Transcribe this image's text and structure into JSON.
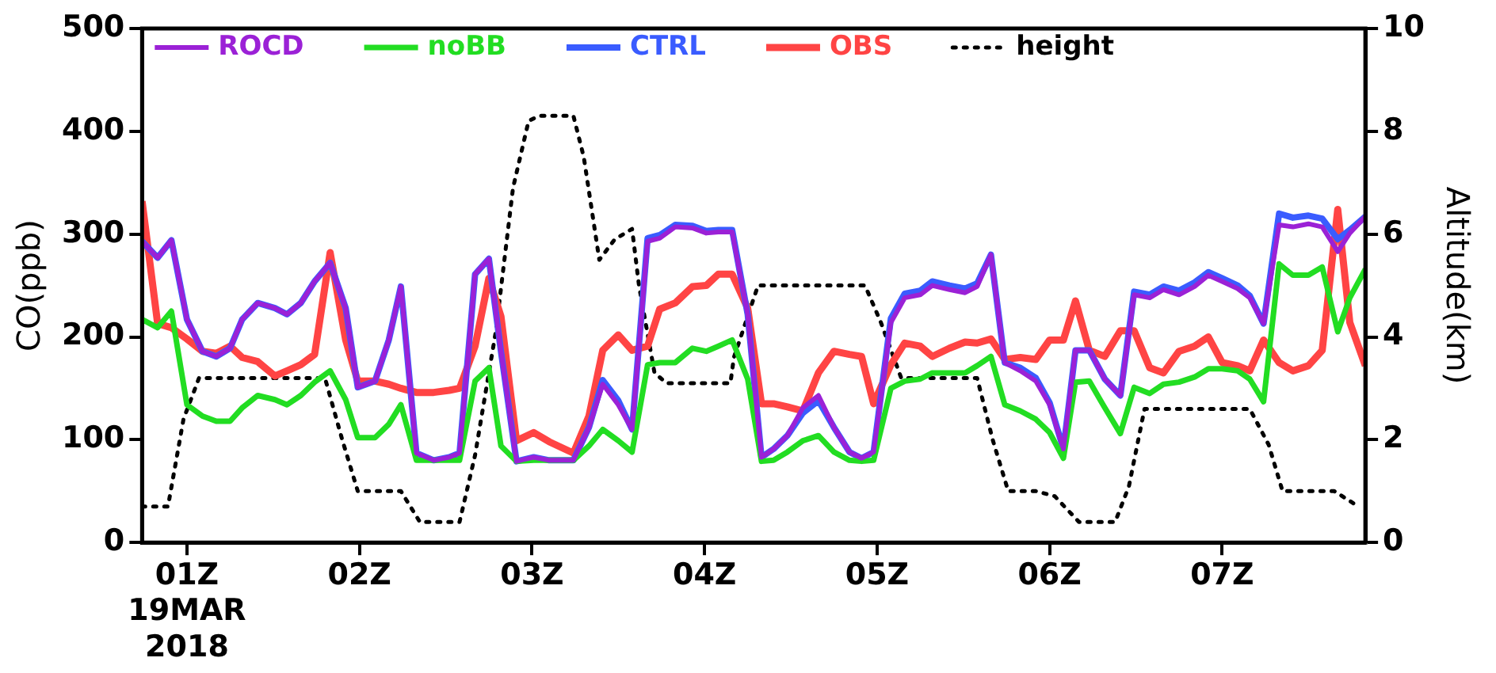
{
  "chart_data": {
    "type": "line",
    "xlabel": null,
    "ylabel": "CO(ppb)",
    "y2label": "Altitude(km)",
    "x": [
      0.74,
      0.83,
      0.91,
      1.0,
      1.09,
      1.17,
      1.25,
      1.32,
      1.41,
      1.51,
      1.58,
      1.66,
      1.74,
      1.83,
      1.92,
      1.99,
      2.09,
      2.17,
      2.24,
      2.33,
      2.43,
      2.52,
      2.58,
      2.67,
      2.75,
      2.82,
      2.91,
      3.01,
      3.1,
      3.24,
      3.33,
      3.41,
      3.5,
      3.58,
      3.67,
      3.74,
      3.83,
      3.93,
      4.01,
      4.08,
      4.16,
      4.25,
      4.33,
      4.4,
      4.48,
      4.57,
      4.66,
      4.75,
      4.84,
      4.91,
      4.98,
      5.08,
      5.16,
      5.25,
      5.32,
      5.42,
      5.51,
      5.58,
      5.66,
      5.74,
      5.83,
      5.92,
      6.0,
      6.08,
      6.15,
      6.23,
      6.32,
      6.41,
      6.49,
      6.58,
      6.66,
      6.75,
      6.84,
      6.92,
      7.0,
      7.09,
      7.16,
      7.24,
      7.33,
      7.41,
      7.5,
      7.58,
      7.67,
      7.74,
      7.83
    ],
    "series": [
      {
        "name": "ROCD",
        "color": "#9b21d6",
        "values": [
          293,
          277,
          294,
          217,
          186,
          181,
          189,
          217,
          233,
          228,
          222,
          233,
          254,
          272,
          228,
          151,
          157,
          197,
          249,
          87,
          80,
          83,
          87,
          261,
          276,
          186,
          79,
          83,
          80,
          80,
          112,
          154,
          134,
          110,
          293,
          296,
          307,
          306,
          301,
          302,
          302,
          222,
          83,
          91,
          104,
          131,
          143,
          112,
          88,
          82,
          88,
          214,
          238,
          241,
          250,
          246,
          243,
          249,
          280,
          175,
          167,
          157,
          134,
          91,
          187,
          187,
          159,
          143,
          241,
          238,
          246,
          241,
          249,
          260,
          254,
          247,
          238,
          213,
          309,
          307,
          310,
          307,
          283,
          301,
          317
        ]
      },
      {
        "name": "noBB",
        "color": "#22dd22",
        "values": [
          217,
          209,
          225,
          134,
          123,
          118,
          118,
          131,
          143,
          139,
          134,
          143,
          156,
          167,
          139,
          102,
          102,
          115,
          134,
          80,
          80,
          80,
          80,
          157,
          170,
          94,
          79,
          80,
          80,
          80,
          94,
          110,
          99,
          88,
          173,
          175,
          175,
          189,
          186,
          191,
          197,
          159,
          79,
          80,
          88,
          99,
          104,
          88,
          80,
          79,
          80,
          150,
          157,
          159,
          165,
          165,
          165,
          172,
          181,
          134,
          128,
          120,
          107,
          82,
          156,
          157,
          131,
          106,
          151,
          145,
          154,
          156,
          161,
          169,
          169,
          167,
          159,
          137,
          271,
          260,
          260,
          268,
          205,
          238,
          266
        ]
      },
      {
        "name": "CTRL",
        "color": "#3a5cff",
        "values": [
          293,
          277,
          294,
          217,
          186,
          181,
          189,
          217,
          233,
          228,
          222,
          233,
          254,
          272,
          228,
          151,
          157,
          197,
          249,
          87,
          80,
          83,
          87,
          261,
          276,
          186,
          79,
          83,
          80,
          80,
          112,
          158,
          138,
          110,
          296,
          299,
          309,
          308,
          303,
          304,
          304,
          222,
          83,
          91,
          104,
          126,
          138,
          112,
          88,
          82,
          88,
          218,
          242,
          245,
          254,
          250,
          247,
          252,
          280,
          175,
          170,
          160,
          136,
          91,
          187,
          187,
          159,
          143,
          244,
          241,
          249,
          245,
          253,
          263,
          257,
          250,
          240,
          213,
          320,
          316,
          318,
          315,
          295,
          304,
          317
        ]
      },
      {
        "name": "OBS",
        "color": "#ff4444",
        "values": [
          332,
          213,
          209,
          198,
          186,
          184,
          191,
          180,
          176,
          162,
          167,
          173,
          183,
          282,
          197,
          157,
          157,
          154,
          150,
          146,
          146,
          148,
          150,
          191,
          257,
          220,
          99,
          107,
          98,
          87,
          123,
          187,
          202,
          187,
          191,
          227,
          233,
          249,
          250,
          261,
          261,
          228,
          135,
          135,
          132,
          128,
          165,
          186,
          183,
          181,
          135,
          173,
          194,
          191,
          181,
          189,
          195,
          194,
          198,
          178,
          180,
          178,
          197,
          197,
          235,
          187,
          181,
          206,
          206,
          170,
          165,
          186,
          191,
          200,
          175,
          172,
          167,
          197,
          175,
          167,
          172,
          187,
          324,
          214,
          172
        ]
      },
      {
        "name": "height",
        "color": "#000000",
        "axis": "y2",
        "line_style": "dotted",
        "x": [
          0.74,
          0.89,
          0.98,
          1.07,
          1.8,
          1.9,
          1.99,
          2.24,
          2.35,
          2.58,
          2.67,
          2.79,
          2.89,
          2.98,
          3.04,
          3.24,
          3.3,
          3.39,
          3.48,
          3.58,
          3.62,
          3.71,
          3.78,
          4.15,
          4.17,
          4.31,
          4.93,
          5.02,
          5.14,
          5.58,
          5.67,
          5.76,
          5.92,
          6.03,
          6.17,
          6.38,
          6.46,
          6.55,
          7.16,
          7.27,
          7.35,
          7.65,
          7.79
        ],
        "values": [
          0.7,
          0.7,
          2.4,
          3.2,
          3.2,
          2.0,
          1.0,
          1.0,
          0.4,
          0.4,
          1.7,
          4.1,
          6.9,
          8.2,
          8.3,
          8.3,
          7.5,
          5.5,
          5.9,
          6.1,
          5.0,
          3.3,
          3.1,
          3.1,
          3.6,
          5.0,
          5.0,
          4.3,
          3.2,
          3.2,
          2.0,
          1.0,
          1.0,
          0.9,
          0.4,
          0.4,
          1.1,
          2.6,
          2.6,
          1.9,
          1.0,
          1.0,
          0.7
        ]
      }
    ],
    "xlim": [
      0.74,
      7.83
    ],
    "xticks": [
      {
        "value": 1,
        "label": "01Z\n19MAR\n2018"
      },
      {
        "value": 2,
        "label": "02Z"
      },
      {
        "value": 3,
        "label": "03Z"
      },
      {
        "value": 4,
        "label": "04Z"
      },
      {
        "value": 5,
        "label": "05Z"
      },
      {
        "value": 6,
        "label": "06Z"
      },
      {
        "value": 7,
        "label": "07Z"
      }
    ],
    "ylim": [
      0,
      500
    ],
    "yticks": [
      0,
      100,
      200,
      300,
      400,
      500
    ],
    "y2lim": [
      0,
      10
    ],
    "y2ticks": [
      0,
      2,
      4,
      6,
      8,
      10
    ],
    "grid": false,
    "legend": "top left",
    "marker": "none",
    "line_style": "solid"
  }
}
